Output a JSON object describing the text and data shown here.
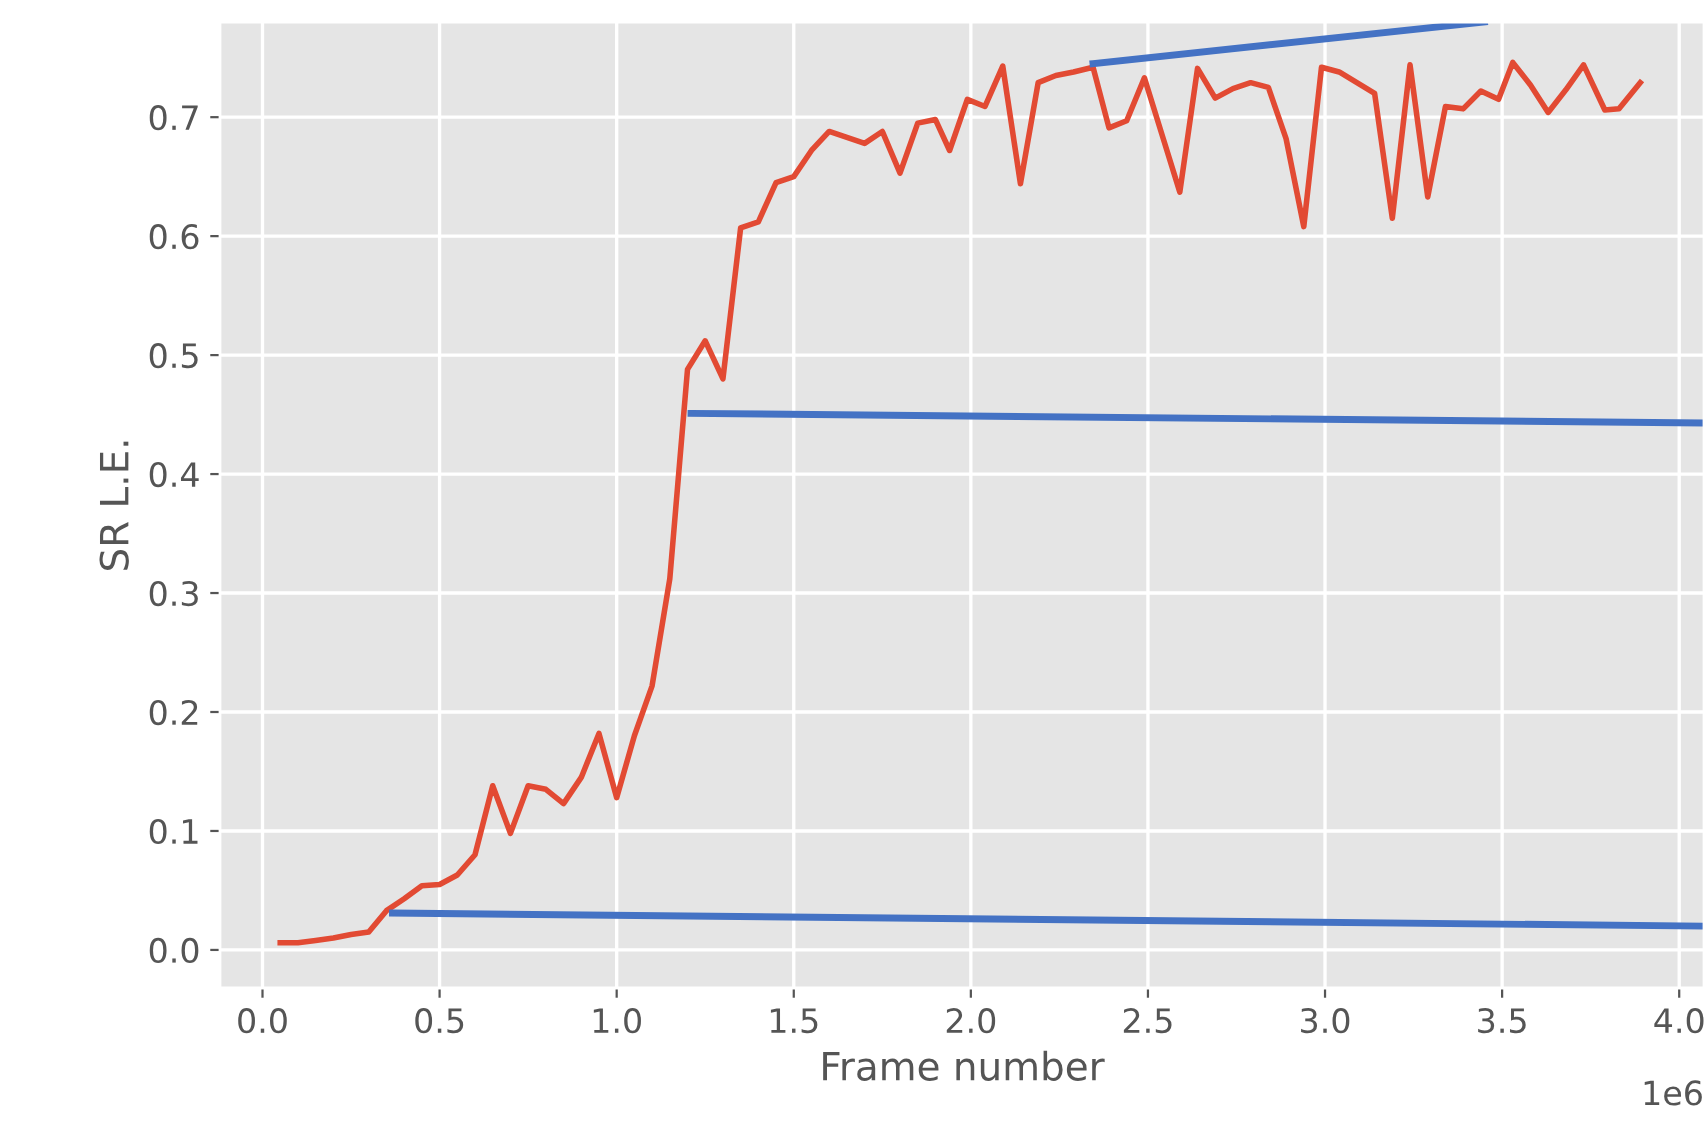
{
  "chart_data": {
    "type": "line",
    "xlabel": "Frame number",
    "ylabel": "SR L.E.",
    "annotations": [
      "1e6"
    ],
    "xlim": [
      -0.12,
      4.07
    ],
    "ylim": [
      -0.032,
      0.78
    ],
    "xticks": [
      {
        "value": 0,
        "label": "0.0"
      },
      0.5,
      {
        "value": 1,
        "label": "1.0"
      },
      1.5,
      {
        "value": 2,
        "label": "2.0"
      },
      2.5,
      {
        "value": 3,
        "label": "3.0"
      },
      3.5,
      {
        "value": 4,
        "label": "4.0"
      }
    ],
    "yticks": [
      {
        "value": 0,
        "label": "0.0"
      },
      0.1,
      0.2,
      0.3,
      0.4,
      0.5,
      0.6,
      0.7
    ],
    "grid": true,
    "series": [
      {
        "color": "#e24a33",
        "x": [
          0.05,
          0.1,
          0.15,
          0.2,
          0.25,
          0.3,
          0.35,
          0.4,
          0.45,
          0.5,
          0.55,
          0.6,
          0.65,
          0.7,
          0.75,
          0.8,
          0.85,
          0.9,
          0.95,
          1.0,
          1.05,
          1.1,
          1.15,
          1.2,
          1.25,
          1.3,
          1.35,
          1.4,
          1.45,
          1.5,
          1.55,
          1.6,
          1.65,
          1.7,
          1.75,
          1.8,
          1.85,
          1.9,
          1.94,
          1.99,
          2.04,
          2.09,
          2.14,
          2.19,
          2.24,
          2.29,
          2.345,
          2.39,
          2.44,
          2.49,
          2.54,
          2.59,
          2.64,
          2.69,
          2.74,
          2.79,
          2.84,
          2.89,
          2.94,
          2.99,
          3.04,
          3.14,
          3.19,
          3.24,
          3.29,
          3.34,
          3.39,
          3.44,
          3.49,
          3.53,
          3.58,
          3.63,
          3.68,
          3.73,
          3.79,
          3.83,
          3.89
        ],
        "values": [
          0.006,
          0.006,
          0.008,
          0.01,
          0.013,
          0.015,
          0.033,
          0.043,
          0.054,
          0.055,
          0.063,
          0.08,
          0.138,
          0.098,
          0.138,
          0.135,
          0.123,
          0.145,
          0.182,
          0.128,
          0.18,
          0.222,
          0.312,
          0.488,
          0.512,
          0.48,
          0.607,
          0.612,
          0.645,
          0.65,
          0.672,
          0.688,
          0.683,
          0.678,
          0.688,
          0.653,
          0.695,
          0.698,
          0.672,
          0.715,
          0.709,
          0.743,
          0.644,
          0.729,
          0.735,
          0.738,
          0.742,
          0.691,
          0.697,
          0.733,
          0.685,
          0.637,
          0.741,
          0.716,
          0.724,
          0.729,
          0.725,
          0.682,
          0.608,
          0.742,
          0.738,
          0.72,
          0.615,
          0.744,
          0.633,
          0.709,
          0.707,
          0.722,
          0.715,
          0.746,
          0.727,
          0.704,
          0.723,
          0.744,
          0.706,
          0.707,
          0.729
        ]
      },
      {
        "color": "#4472c4",
        "x": [
          0.367,
          4.07
        ],
        "values": [
          0.031,
          0.02
        ]
      },
      {
        "color": "#4472c4",
        "x": [
          1.21,
          4.07
        ],
        "values": [
          0.451,
          0.443
        ]
      },
      {
        "color": "#4472c4",
        "x": [
          2.345,
          3.45
        ],
        "values": [
          0.745,
          0.78
        ]
      }
    ]
  }
}
